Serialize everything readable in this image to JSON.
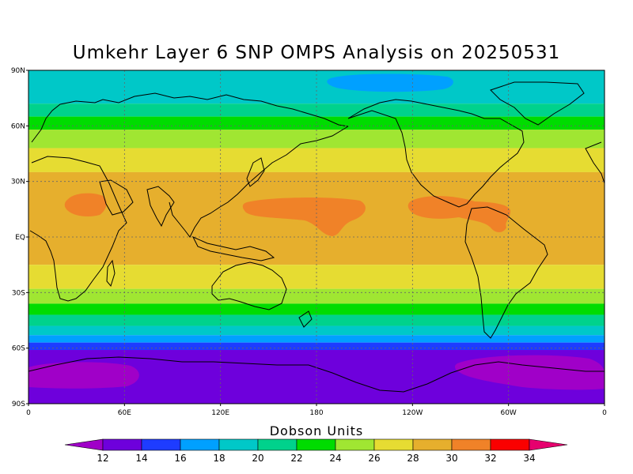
{
  "title": "Umkehr Layer 6 SNP OMPS Analysis on 20250531",
  "colorbar": {
    "title": "Dobson Units",
    "levels": [
      "12",
      "14",
      "16",
      "18",
      "20",
      "22",
      "24",
      "26",
      "28",
      "30",
      "32",
      "34"
    ],
    "colors": [
      "#a000c8",
      "#6e00dc",
      "#1e3cff",
      "#00a0ff",
      "#00c8c8",
      "#00d28c",
      "#00dc00",
      "#a0e632",
      "#e6dc32",
      "#e6af2d",
      "#f08228",
      "#fa0000",
      "#e6006e"
    ]
  },
  "axes": {
    "lat_labels": [
      "90N",
      "60N",
      "30N",
      "EQ",
      "30S",
      "60S",
      "90S"
    ],
    "lon_labels": [
      "0",
      "60E",
      "120E",
      "180",
      "120W",
      "60W",
      "0"
    ]
  },
  "bands": [
    {
      "from_lat": 90,
      "to_lat": 72,
      "color": "#00c8c8"
    },
    {
      "from_lat": 72,
      "to_lat": 65,
      "color": "#00d28c"
    },
    {
      "from_lat": 65,
      "to_lat": 58,
      "color": "#00dc00"
    },
    {
      "from_lat": 58,
      "to_lat": 48,
      "color": "#a0e632"
    },
    {
      "from_lat": 48,
      "to_lat": 35,
      "color": "#e6dc32"
    },
    {
      "from_lat": 35,
      "to_lat": -15,
      "color": "#e6af2d"
    },
    {
      "from_lat": -15,
      "to_lat": -28,
      "color": "#e6dc32"
    },
    {
      "from_lat": -28,
      "to_lat": -36,
      "color": "#a0e632"
    },
    {
      "from_lat": -36,
      "to_lat": -42,
      "color": "#00dc00"
    },
    {
      "from_lat": -42,
      "to_lat": -48,
      "color": "#00d28c"
    },
    {
      "from_lat": -48,
      "to_lat": -53,
      "color": "#00c8c8"
    },
    {
      "from_lat": -53,
      "to_lat": -57,
      "color": "#00a0ff"
    },
    {
      "from_lat": -57,
      "to_lat": -61,
      "color": "#1e3cff"
    },
    {
      "from_lat": -61,
      "to_lat": -90,
      "color": "#6e00dc"
    }
  ]
}
